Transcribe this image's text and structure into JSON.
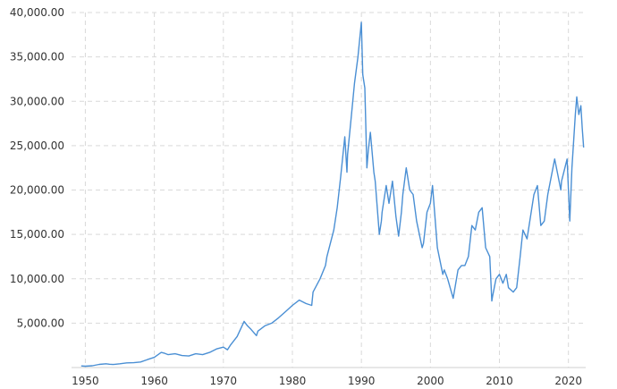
{
  "chart_data": {
    "type": "line",
    "title": "",
    "xlabel": "",
    "ylabel": "",
    "xlim": [
      1948,
      2022.5
    ],
    "ylim": [
      0,
      40000
    ],
    "x_ticks": [
      1950,
      1960,
      1970,
      1980,
      1990,
      2000,
      2010,
      2020
    ],
    "x_tick_labels": [
      "1950",
      "1960",
      "1970",
      "1980",
      "1990",
      "2000",
      "2010",
      "2020"
    ],
    "y_ticks": [
      5000,
      10000,
      15000,
      20000,
      25000,
      30000,
      35000,
      40000
    ],
    "y_tick_labels": [
      "5,000.00",
      "10,000.00",
      "15,000.00",
      "20,000.00",
      "25,000.00",
      "30,000.00",
      "35,000.00",
      "40,000.00"
    ],
    "grid": true,
    "line_color": "#4a8fd4",
    "series": [
      {
        "values": [
          [
            1949.4,
            180
          ],
          [
            1950,
            150
          ],
          [
            1951,
            200
          ],
          [
            1952,
            350
          ],
          [
            1953,
            420
          ],
          [
            1953.5,
            370
          ],
          [
            1954,
            340
          ],
          [
            1955,
            420
          ],
          [
            1956,
            520
          ],
          [
            1957,
            540
          ],
          [
            1958,
            620
          ],
          [
            1959,
            900
          ],
          [
            1960,
            1150
          ],
          [
            1961,
            1700
          ],
          [
            1961.5,
            1600
          ],
          [
            1962,
            1450
          ],
          [
            1963,
            1550
          ],
          [
            1964,
            1350
          ],
          [
            1965,
            1300
          ],
          [
            1966,
            1550
          ],
          [
            1967,
            1450
          ],
          [
            1968,
            1700
          ],
          [
            1969,
            2100
          ],
          [
            1970,
            2300
          ],
          [
            1970.6,
            2000
          ],
          [
            1971,
            2500
          ],
          [
            1972,
            3500
          ],
          [
            1973,
            5200
          ],
          [
            1973.5,
            4700
          ],
          [
            1974,
            4300
          ],
          [
            1974.8,
            3600
          ],
          [
            1975,
            4100
          ],
          [
            1976,
            4700
          ],
          [
            1977,
            5000
          ],
          [
            1978,
            5600
          ],
          [
            1979,
            6300
          ],
          [
            1980,
            7000
          ],
          [
            1981,
            7600
          ],
          [
            1982,
            7200
          ],
          [
            1982.8,
            7000
          ],
          [
            1983,
            8500
          ],
          [
            1984,
            10000
          ],
          [
            1984.8,
            11500
          ],
          [
            1985,
            12500
          ],
          [
            1986,
            15500
          ],
          [
            1986.5,
            18000
          ],
          [
            1987,
            21500
          ],
          [
            1987.6,
            26000
          ],
          [
            1987.9,
            22000
          ],
          [
            1988,
            24000
          ],
          [
            1988.5,
            28000
          ],
          [
            1989,
            32000
          ],
          [
            1989.5,
            35000
          ],
          [
            1989.99,
            38900
          ],
          [
            1990.2,
            33000
          ],
          [
            1990.5,
            31500
          ],
          [
            1990.8,
            22500
          ],
          [
            1991,
            24500
          ],
          [
            1991.3,
            26500
          ],
          [
            1991.8,
            22000
          ],
          [
            1992,
            21000
          ],
          [
            1992.6,
            15000
          ],
          [
            1992.9,
            16500
          ],
          [
            1993,
            17500
          ],
          [
            1993.6,
            20500
          ],
          [
            1994,
            18500
          ],
          [
            1994.5,
            21000
          ],
          [
            1995,
            17000
          ],
          [
            1995.4,
            14800
          ],
          [
            1995.8,
            17500
          ],
          [
            1996,
            19500
          ],
          [
            1996.5,
            22500
          ],
          [
            1997,
            20000
          ],
          [
            1997.5,
            19500
          ],
          [
            1998,
            16500
          ],
          [
            1998.8,
            13500
          ],
          [
            1999,
            14000
          ],
          [
            1999.5,
            17500
          ],
          [
            2000,
            18500
          ],
          [
            2000.3,
            20500
          ],
          [
            2001,
            13500
          ],
          [
            2001.8,
            10500
          ],
          [
            2002,
            11000
          ],
          [
            2002.5,
            10000
          ],
          [
            2003,
            8600
          ],
          [
            2003.3,
            7800
          ],
          [
            2004,
            11000
          ],
          [
            2004.5,
            11500
          ],
          [
            2005,
            11500
          ],
          [
            2005.5,
            12500
          ],
          [
            2006,
            16000
          ],
          [
            2006.5,
            15500
          ],
          [
            2007,
            17500
          ],
          [
            2007.5,
            18000
          ],
          [
            2008,
            13500
          ],
          [
            2008.6,
            12500
          ],
          [
            2008.9,
            7500
          ],
          [
            2009,
            8000
          ],
          [
            2009.5,
            10000
          ],
          [
            2010,
            10500
          ],
          [
            2010.5,
            9500
          ],
          [
            2011,
            10500
          ],
          [
            2011.3,
            9000
          ],
          [
            2012,
            8500
          ],
          [
            2012.5,
            9000
          ],
          [
            2013,
            12500
          ],
          [
            2013.4,
            15500
          ],
          [
            2014,
            14500
          ],
          [
            2015,
            19500
          ],
          [
            2015.5,
            20500
          ],
          [
            2016,
            16000
          ],
          [
            2016.5,
            16500
          ],
          [
            2017,
            19500
          ],
          [
            2018,
            23500
          ],
          [
            2018.9,
            20000
          ],
          [
            2019,
            21000
          ],
          [
            2019.8,
            23500
          ],
          [
            2020.2,
            16500
          ],
          [
            2020.5,
            22500
          ],
          [
            2021,
            28500
          ],
          [
            2021.2,
            30500
          ],
          [
            2021.5,
            28500
          ],
          [
            2021.8,
            29500
          ],
          [
            2022,
            27000
          ],
          [
            2022.2,
            24800
          ]
        ]
      }
    ]
  }
}
